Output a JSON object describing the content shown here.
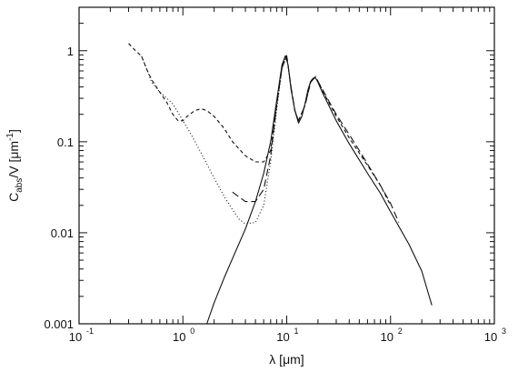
{
  "chart_data": {
    "type": "line",
    "title": "",
    "xlabel": "λ [μm]",
    "ylabel": {
      "main": "C",
      "subscript": "abs",
      "rest": "/V  [μm",
      "superscript": "-1",
      "close": "]"
    },
    "x_scale": "log",
    "y_scale": "log",
    "xlim": [
      0.1,
      1000
    ],
    "ylim": [
      0.001,
      3
    ],
    "x_ticks": [
      {
        "value": 0.1,
        "base": "10",
        "exp": "-1"
      },
      {
        "value": 1,
        "base": "10",
        "exp": "0"
      },
      {
        "value": 10,
        "base": "10",
        "exp": "1"
      },
      {
        "value": 100,
        "base": "10",
        "exp": "2"
      },
      {
        "value": 1000,
        "base": "10",
        "exp": "3"
      }
    ],
    "y_ticks": [
      {
        "value": 0.001,
        "label": "0.001"
      },
      {
        "value": 0.01,
        "label": "0.01"
      },
      {
        "value": 0.1,
        "label": "0.1"
      },
      {
        "value": 1,
        "label": "1"
      }
    ],
    "grid": false,
    "series": [
      {
        "style": "solid",
        "x": [
          1.7,
          2,
          2.5,
          3,
          4,
          5,
          6,
          7,
          8,
          9,
          9.7,
          10.3,
          11,
          12,
          13,
          14,
          15,
          16,
          17,
          18,
          19,
          20,
          22,
          25,
          30,
          40,
          50,
          60,
          80,
          100,
          150,
          200,
          250
        ],
        "y": [
          0.001,
          0.0017,
          0.0032,
          0.0052,
          0.011,
          0.022,
          0.045,
          0.1,
          0.28,
          0.7,
          0.88,
          0.7,
          0.38,
          0.22,
          0.16,
          0.19,
          0.26,
          0.37,
          0.46,
          0.5,
          0.5,
          0.45,
          0.35,
          0.26,
          0.17,
          0.095,
          0.063,
          0.045,
          0.027,
          0.017,
          0.0075,
          0.0038,
          0.0016
        ]
      },
      {
        "style": "dashed",
        "x": [
          0.3,
          0.35,
          0.4,
          0.45,
          0.5,
          0.6,
          0.7,
          0.8,
          0.9,
          1,
          1.1,
          1.3,
          1.5,
          1.7,
          2,
          2.5,
          3,
          4,
          5,
          6,
          7,
          8,
          9,
          10,
          11,
          12,
          13,
          15,
          17,
          19,
          20,
          22,
          25,
          30,
          40,
          50,
          60,
          80,
          100
        ],
        "y": [
          1.2,
          1.0,
          0.87,
          0.62,
          0.48,
          0.35,
          0.27,
          0.2,
          0.17,
          0.17,
          0.19,
          0.22,
          0.23,
          0.22,
          0.19,
          0.14,
          0.1,
          0.07,
          0.06,
          0.06,
          0.08,
          0.25,
          0.65,
          0.88,
          0.4,
          0.22,
          0.17,
          0.25,
          0.45,
          0.52,
          0.46,
          0.37,
          0.28,
          0.19,
          0.11,
          0.075,
          0.055,
          0.033,
          0.02
        ]
      },
      {
        "style": "dotted",
        "x": [
          0.4,
          0.45,
          0.5,
          0.6,
          0.7,
          0.8,
          1,
          1.2,
          1.5,
          2,
          2.5,
          3,
          3.5,
          4,
          5,
          6,
          7,
          8,
          9,
          10
        ],
        "y": [
          0.87,
          0.62,
          0.45,
          0.35,
          0.3,
          0.26,
          0.17,
          0.12,
          0.075,
          0.04,
          0.025,
          0.018,
          0.014,
          0.0125,
          0.013,
          0.02,
          0.06,
          0.22,
          0.65,
          0.88
        ]
      },
      {
        "style": "longdash",
        "x": [
          3,
          4,
          5,
          6,
          7,
          8,
          9,
          10,
          11,
          12,
          13,
          15,
          17,
          19,
          20,
          22,
          25,
          30,
          40,
          50,
          60,
          80,
          100,
          120
        ],
        "y": [
          0.028,
          0.022,
          0.022,
          0.03,
          0.07,
          0.25,
          0.65,
          0.88,
          0.4,
          0.22,
          0.17,
          0.25,
          0.45,
          0.52,
          0.46,
          0.38,
          0.29,
          0.2,
          0.12,
          0.08,
          0.057,
          0.033,
          0.021,
          0.013
        ]
      }
    ]
  }
}
